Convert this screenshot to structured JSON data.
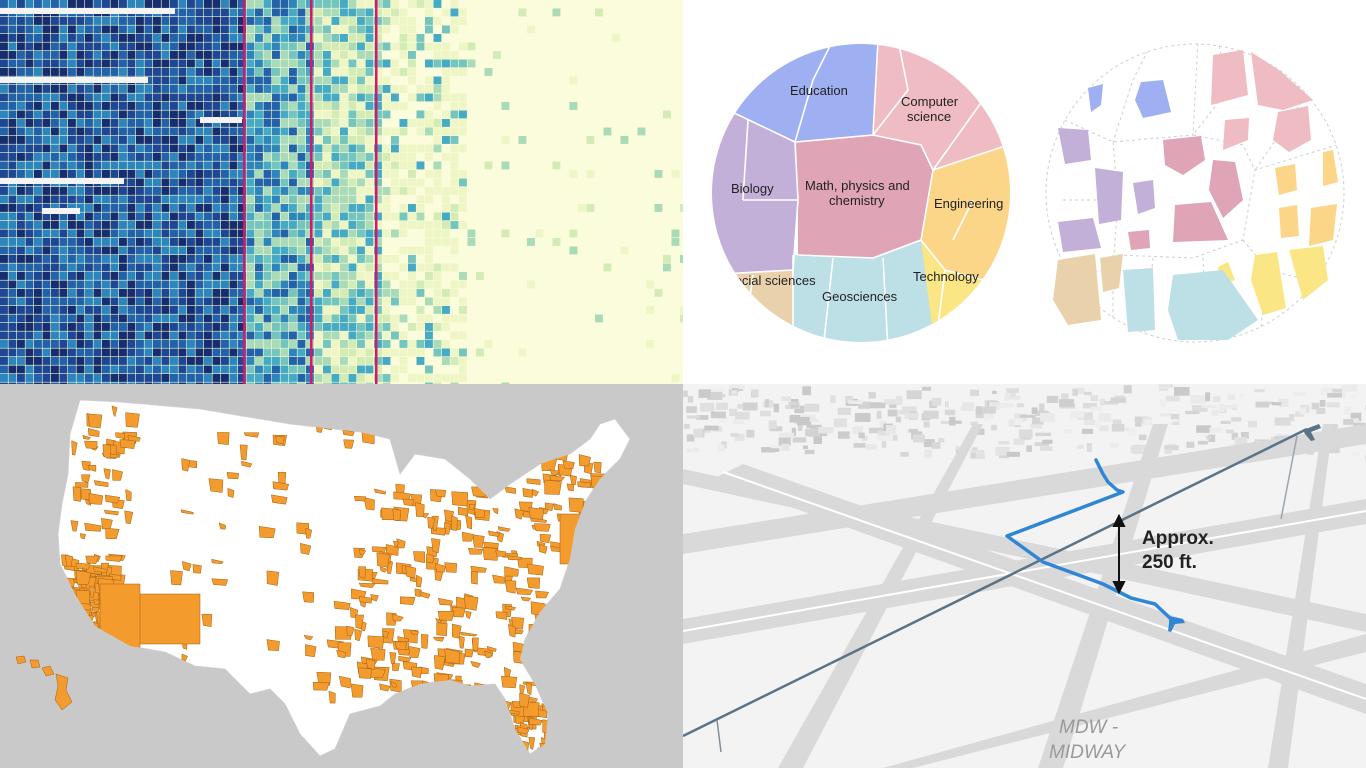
{
  "panels": {
    "heatmap": {
      "colors": [
        "#fbfcdc",
        "#eef6c6",
        "#d3ecb6",
        "#a9dbb8",
        "#73c5bd",
        "#45aac4",
        "#2c86bb",
        "#2162a8",
        "#1d4792",
        "#162d6e"
      ],
      "highlight_color": "#d8166a"
    },
    "voronoi": {
      "labels": {
        "education": "Education",
        "computer_science_1": "Computer",
        "computer_science_2": "science",
        "biology": "Biology",
        "math_1": "Math, physics and",
        "math_2": "chemistry",
        "engineering": "Engineering",
        "social_sciences": "Social sciences",
        "geosciences": "Geosciences",
        "technology": "Technology"
      },
      "colors": {
        "education": "#9fb0f2",
        "computer_science": "#efbcc4",
        "biology": "#c3b0d8",
        "math": "#dfa4b6",
        "engineering": "#fbd588",
        "social_sciences": "#e9d2ab",
        "geosciences": "#bddfe6",
        "technology": "#fbe685"
      }
    },
    "map": {
      "land_color": "#ffffff",
      "highlight_color": "#f39b2d",
      "background_color": "#c9c9c9"
    },
    "flight": {
      "annotation_1": "Approx.",
      "annotation_2": "250 ft.",
      "airport_1": "MDW -",
      "airport_2": "MIDWAY",
      "path_color": "#2e86d4",
      "plane_line_color": "#5a7389"
    }
  }
}
